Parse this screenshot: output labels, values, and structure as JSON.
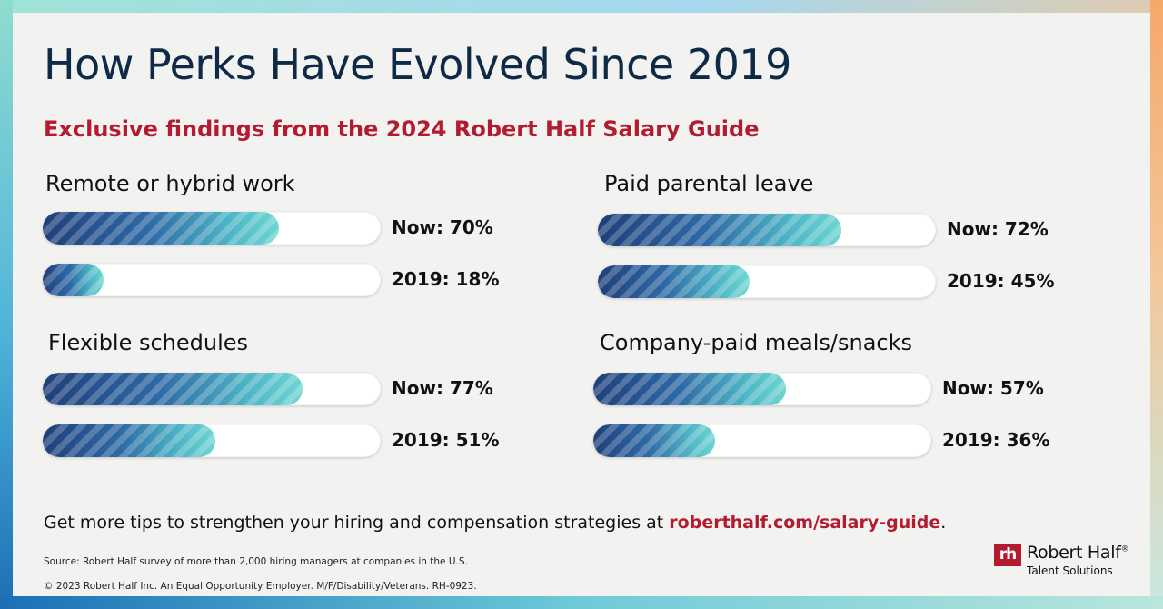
{
  "title": "How Perks Have Evolved Since 2019",
  "subtitle": "Exclusive findings from the 2024 Robert Half Salary Guide",
  "cta": {
    "text": "Get more tips to strengthen your hiring and compensation strategies at ",
    "link": "roberthalf.com/salary-guide",
    "end": "."
  },
  "source": "Source: Robert Half survey of more than 2,000 hiring managers at companies in the U.S.",
  "copyright": "© 2023 Robert Half Inc. An Equal Opportunity Employer. M/F/Disability/Veterans. RH-0923.",
  "logo": {
    "mark": "rh",
    "name": "Robert Half",
    "trademark": "®",
    "tagline": "Talent Solutions"
  },
  "colors": {
    "title": "#0f2a47",
    "accent": "#b31b2f",
    "bar_start": "#1f3f7a",
    "bar_end": "#6fd6d2"
  },
  "chart_data": {
    "type": "bar",
    "orientation": "horizontal",
    "title": "How Perks Have Evolved Since 2019",
    "subtitle": "Exclusive findings from the 2024 Robert Half Salary Guide",
    "xlim": [
      0,
      100
    ],
    "unit": "%",
    "groups": [
      {
        "name": "Remote or hybrid work",
        "bars": [
          {
            "label": "Now: 70%",
            "period": "Now",
            "value": 70
          },
          {
            "label": "2019: 18%",
            "period": "2019",
            "value": 18
          }
        ]
      },
      {
        "name": "Paid parental leave",
        "bars": [
          {
            "label": "Now: 72%",
            "period": "Now",
            "value": 72
          },
          {
            "label": "2019: 45%",
            "period": "2019",
            "value": 45
          }
        ]
      },
      {
        "name": "Flexible schedules",
        "bars": [
          {
            "label": "Now: 77%",
            "period": "Now",
            "value": 77
          },
          {
            "label": "2019: 51%",
            "period": "2019",
            "value": 51
          }
        ]
      },
      {
        "name": "Company-paid meals/snacks",
        "bars": [
          {
            "label": "Now: 57%",
            "period": "Now",
            "value": 57
          },
          {
            "label": "2019: 36%",
            "period": "2019",
            "value": 36
          }
        ]
      }
    ]
  }
}
